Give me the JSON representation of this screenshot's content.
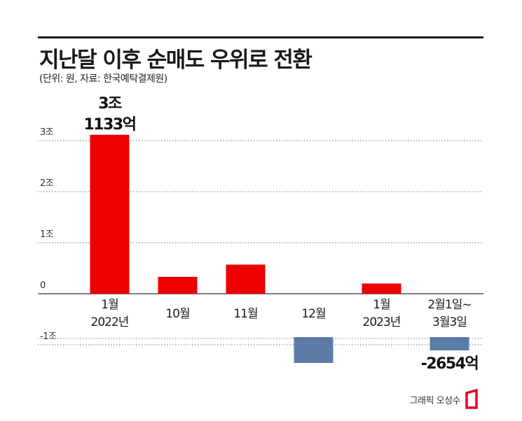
{
  "header": {
    "title": "지난달 이후 순매도 우위로 전환",
    "subtitle": "(단위: 원, 자료: 한국예탁결제원)"
  },
  "credit": {
    "text": "그래픽 오성수"
  },
  "colors": {
    "positive": "#ee0000",
    "negative": "#5b7ca6",
    "logo": "#e4002b"
  },
  "chart_data": {
    "type": "bar",
    "title": "지난달 이후 순매도 우위로 전환",
    "ylim": [
      -1.3,
      3.4
    ],
    "y_ticks": [
      {
        "value": 3,
        "label": "3조"
      },
      {
        "value": 2,
        "label": "2조"
      },
      {
        "value": 1,
        "label": "1조"
      },
      {
        "value": 0,
        "label": "0"
      },
      {
        "value": -1,
        "label": "-1조"
      }
    ],
    "categories": [
      [
        "1월",
        "2022년"
      ],
      [
        "10월"
      ],
      [
        "11월"
      ],
      [
        "12월"
      ],
      [
        "1월",
        "2023년"
      ],
      [
        "2월1일~",
        "3월3일"
      ]
    ],
    "values": [
      3.1133,
      0.33,
      0.57,
      -1.2,
      0.2,
      -0.2654
    ],
    "data_labels": [
      {
        "index": 0,
        "lines": [
          "3조",
          "1133억"
        ]
      },
      {
        "index": 5,
        "lines": [
          "-2654억"
        ]
      }
    ],
    "grid": true
  }
}
